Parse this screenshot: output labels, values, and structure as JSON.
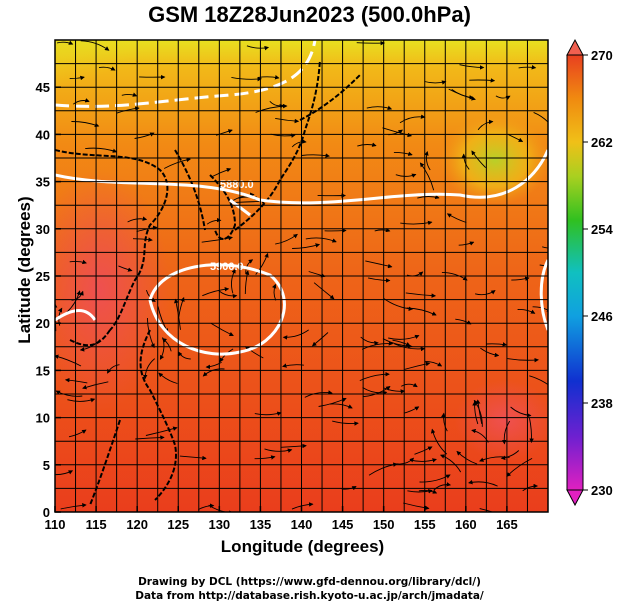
{
  "title": "GSM 18Z28Jun2023 (500.0hPa)",
  "axes": {
    "x_label": "Longitude (degrees)",
    "y_label": "Latitude  (degrees)",
    "x_ticks": [
      "110",
      "115",
      "120",
      "125",
      "130",
      "135",
      "140",
      "145",
      "150",
      "155",
      "160",
      "165"
    ],
    "y_ticks": [
      "0",
      "5",
      "10",
      "15",
      "20",
      "25",
      "30",
      "35",
      "40",
      "45"
    ],
    "x_range": [
      110,
      170
    ],
    "y_range": [
      0,
      50
    ]
  },
  "colorbar": {
    "labels": [
      "270",
      "262",
      "254",
      "246",
      "238",
      "230"
    ],
    "range": [
      230,
      270
    ],
    "colors": {
      "low": "#e020c0",
      "blue": "#1030d0",
      "cyan": "#10c0e0",
      "green": "#30c020",
      "yellow": "#e8e020",
      "orange": "#f08a10",
      "red": "#e84020",
      "top": "#f06050"
    }
  },
  "contours": [
    {
      "label": "5880.0"
    },
    {
      "label": "5900.0"
    }
  ],
  "credits": {
    "line1": "Drawing by DCL (https://www.gfd-dennou.org/library/dcl/)",
    "line2": "Data from http://database.rish.kyoto-u.ac.jp/arch/jmadata/"
  }
}
